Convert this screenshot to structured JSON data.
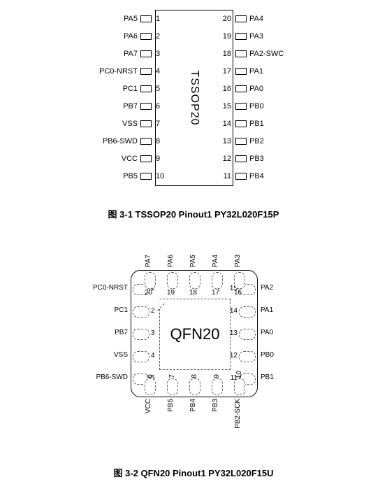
{
  "tssop": {
    "body_label": "TSSOP20",
    "left_pins": [
      {
        "num": "1",
        "name": "PA5"
      },
      {
        "num": "2",
        "name": "PA6"
      },
      {
        "num": "3",
        "name": "PA7"
      },
      {
        "num": "4",
        "name": "PC0-NRST"
      },
      {
        "num": "5",
        "name": "PC1"
      },
      {
        "num": "6",
        "name": "PB7"
      },
      {
        "num": "7",
        "name": "VSS"
      },
      {
        "num": "8",
        "name": "PB6-SWD"
      },
      {
        "num": "9",
        "name": "VCC"
      },
      {
        "num": "10",
        "name": "PB5"
      }
    ],
    "right_pins": [
      {
        "num": "20",
        "name": "PA4"
      },
      {
        "num": "19",
        "name": "PA3"
      },
      {
        "num": "18",
        "name": "PA2-SWC"
      },
      {
        "num": "17",
        "name": "PA1"
      },
      {
        "num": "16",
        "name": "PA0"
      },
      {
        "num": "15",
        "name": "PB0"
      },
      {
        "num": "14",
        "name": "PB1"
      },
      {
        "num": "13",
        "name": "PB2"
      },
      {
        "num": "12",
        "name": "PB3"
      },
      {
        "num": "11",
        "name": "PB4"
      }
    ]
  },
  "qfn": {
    "body_label": "QFN20",
    "left_pins": [
      {
        "num": "1",
        "name": "PC0-NRST"
      },
      {
        "num": "2",
        "name": "PC1"
      },
      {
        "num": "3",
        "name": "PB7"
      },
      {
        "num": "4",
        "name": "VSS"
      },
      {
        "num": "5",
        "name": "PB6-SWD"
      }
    ],
    "right_pins": [
      {
        "num": "15",
        "name": "PA2"
      },
      {
        "num": "14",
        "name": "PA1"
      },
      {
        "num": "13",
        "name": "PA0"
      },
      {
        "num": "12",
        "name": "PB0"
      },
      {
        "num": "11",
        "name": "PB1"
      }
    ],
    "top_pins": [
      {
        "num": "20",
        "name": "PA7"
      },
      {
        "num": "19",
        "name": "PA6"
      },
      {
        "num": "18",
        "name": "PA5"
      },
      {
        "num": "17",
        "name": "PA4"
      },
      {
        "num": "16",
        "name": "PA3"
      }
    ],
    "bottom_pins": [
      {
        "num": "6",
        "name": "VCC"
      },
      {
        "num": "7",
        "name": "PB5"
      },
      {
        "num": "8",
        "name": "PB4"
      },
      {
        "num": "9",
        "name": "PB3"
      },
      {
        "num": "10",
        "name": "PB2-SCK"
      }
    ]
  },
  "captions": {
    "fig1": "图 3-1 TSSOP20 Pinout1 PY32L020F15P",
    "fig2": "图 3-2 QFN20 Pinout1 PY32L020F15U"
  },
  "style": {
    "tssop": {
      "pin_pitch": 25,
      "body_w": 110,
      "body_h": 250
    },
    "qfn": {
      "pin_pitch": 32,
      "body_size": 180
    }
  }
}
